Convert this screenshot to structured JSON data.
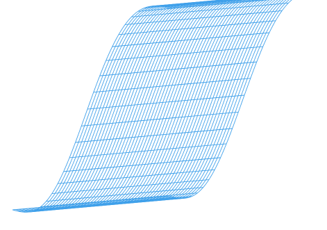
{
  "figure": {
    "kind": "wireframe-surface",
    "shape": "s-curve",
    "line_color": "#3fa0ea",
    "background": "#ffffff",
    "grid_columns": 50,
    "grid_rows": 26
  }
}
